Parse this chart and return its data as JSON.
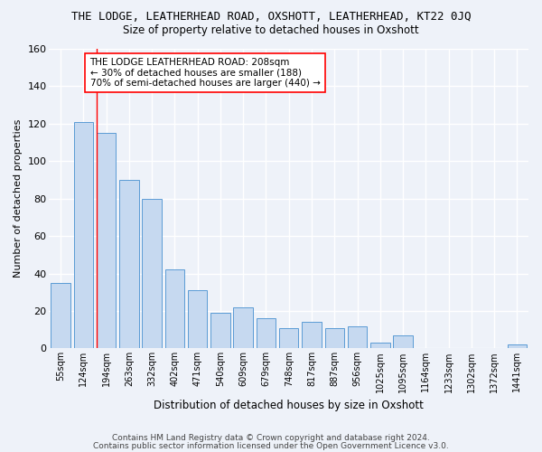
{
  "title": "THE LODGE, LEATHERHEAD ROAD, OXSHOTT, LEATHERHEAD, KT22 0JQ",
  "subtitle": "Size of property relative to detached houses in Oxshott",
  "xlabel": "Distribution of detached houses by size in Oxshott",
  "ylabel": "Number of detached properties",
  "categories": [
    "55sqm",
    "124sqm",
    "194sqm",
    "263sqm",
    "332sqm",
    "402sqm",
    "471sqm",
    "540sqm",
    "609sqm",
    "679sqm",
    "748sqm",
    "817sqm",
    "887sqm",
    "956sqm",
    "1025sqm",
    "1095sqm",
    "1164sqm",
    "1233sqm",
    "1302sqm",
    "1372sqm",
    "1441sqm"
  ],
  "values": [
    35,
    121,
    115,
    90,
    80,
    42,
    31,
    19,
    22,
    16,
    11,
    14,
    11,
    12,
    3,
    7,
    0,
    0,
    0,
    0,
    2
  ],
  "bar_color": "#c6d9f0",
  "bar_edge_color": "#5b9bd5",
  "annotation_text": "THE LODGE LEATHERHEAD ROAD: 208sqm\n← 30% of detached houses are smaller (188)\n70% of semi-detached houses are larger (440) →",
  "ylim": [
    0,
    160
  ],
  "yticks": [
    0,
    20,
    40,
    60,
    80,
    100,
    120,
    140,
    160
  ],
  "footer_line1": "Contains HM Land Registry data © Crown copyright and database right 2024.",
  "footer_line2": "Contains public sector information licensed under the Open Government Licence v3.0.",
  "bg_color": "#eef2f9",
  "grid_color": "#ffffff"
}
